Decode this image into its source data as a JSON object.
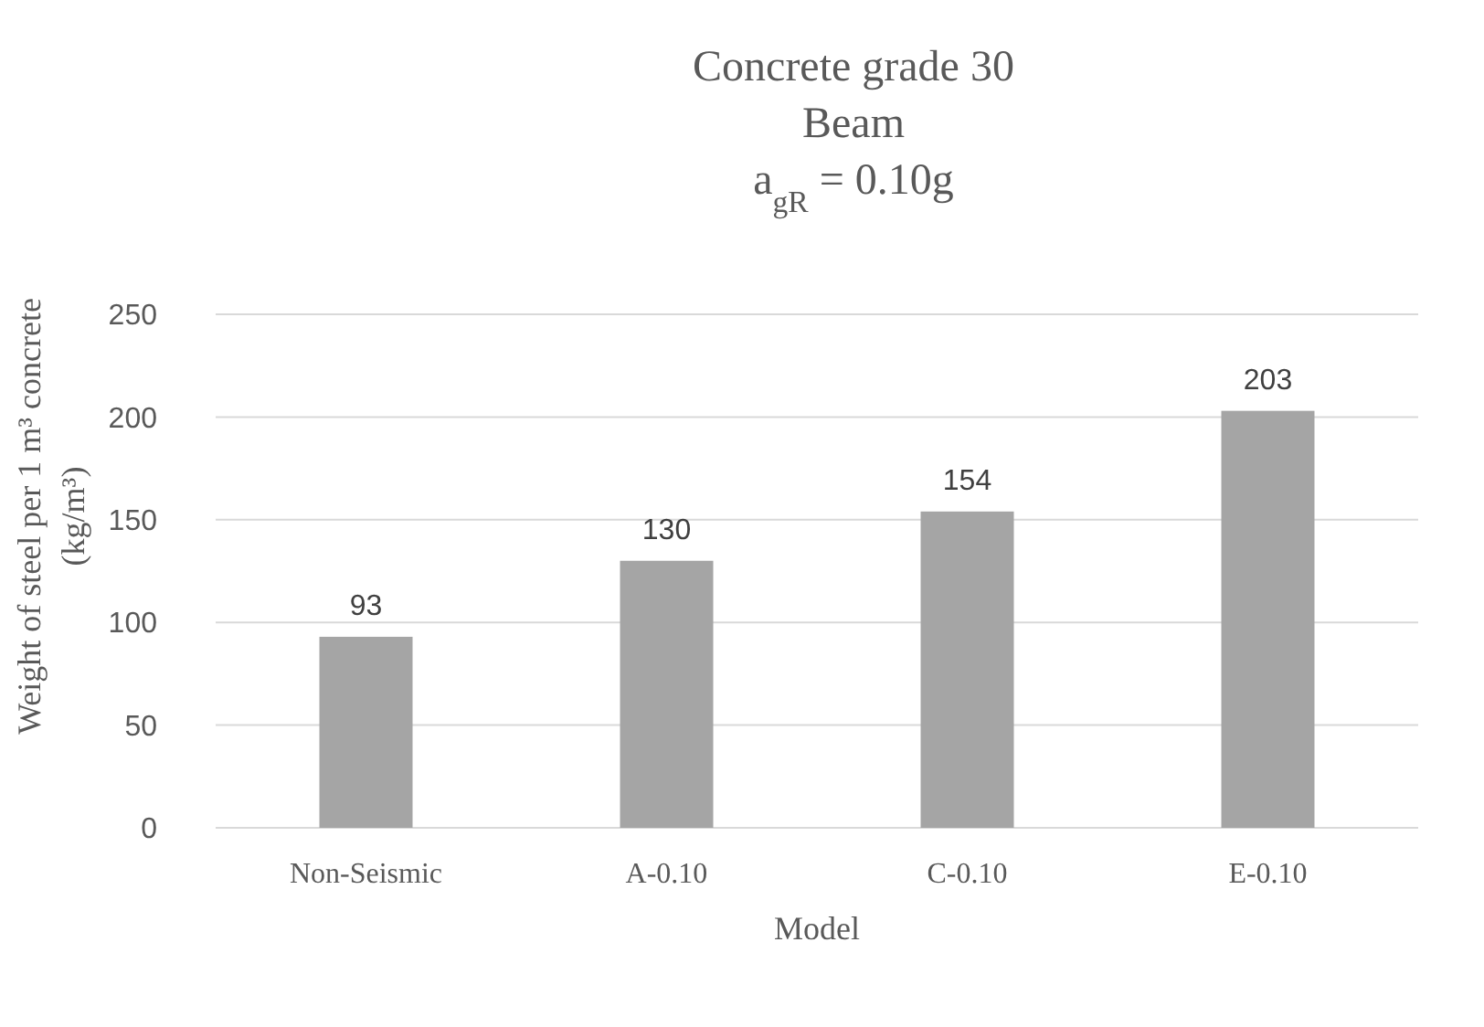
{
  "chart_data": {
    "type": "bar",
    "title": "Concrete grade 30\nBeam\na$_{gR}$ = 0.10g",
    "xlabel": "Model",
    "ylabel": "Weight of steel per 1 m³ concrete\n(kg/m³)",
    "categories": [
      "Non-Seismic",
      "A-0.10",
      "C-0.10",
      "E-0.10"
    ],
    "values": [
      93,
      130,
      154,
      203
    ],
    "color": "#a5a5a5",
    "ylim": [
      0,
      250
    ],
    "yticks": [
      0,
      50,
      100,
      150,
      200,
      250
    ],
    "grid": "y",
    "data_labels": true
  }
}
